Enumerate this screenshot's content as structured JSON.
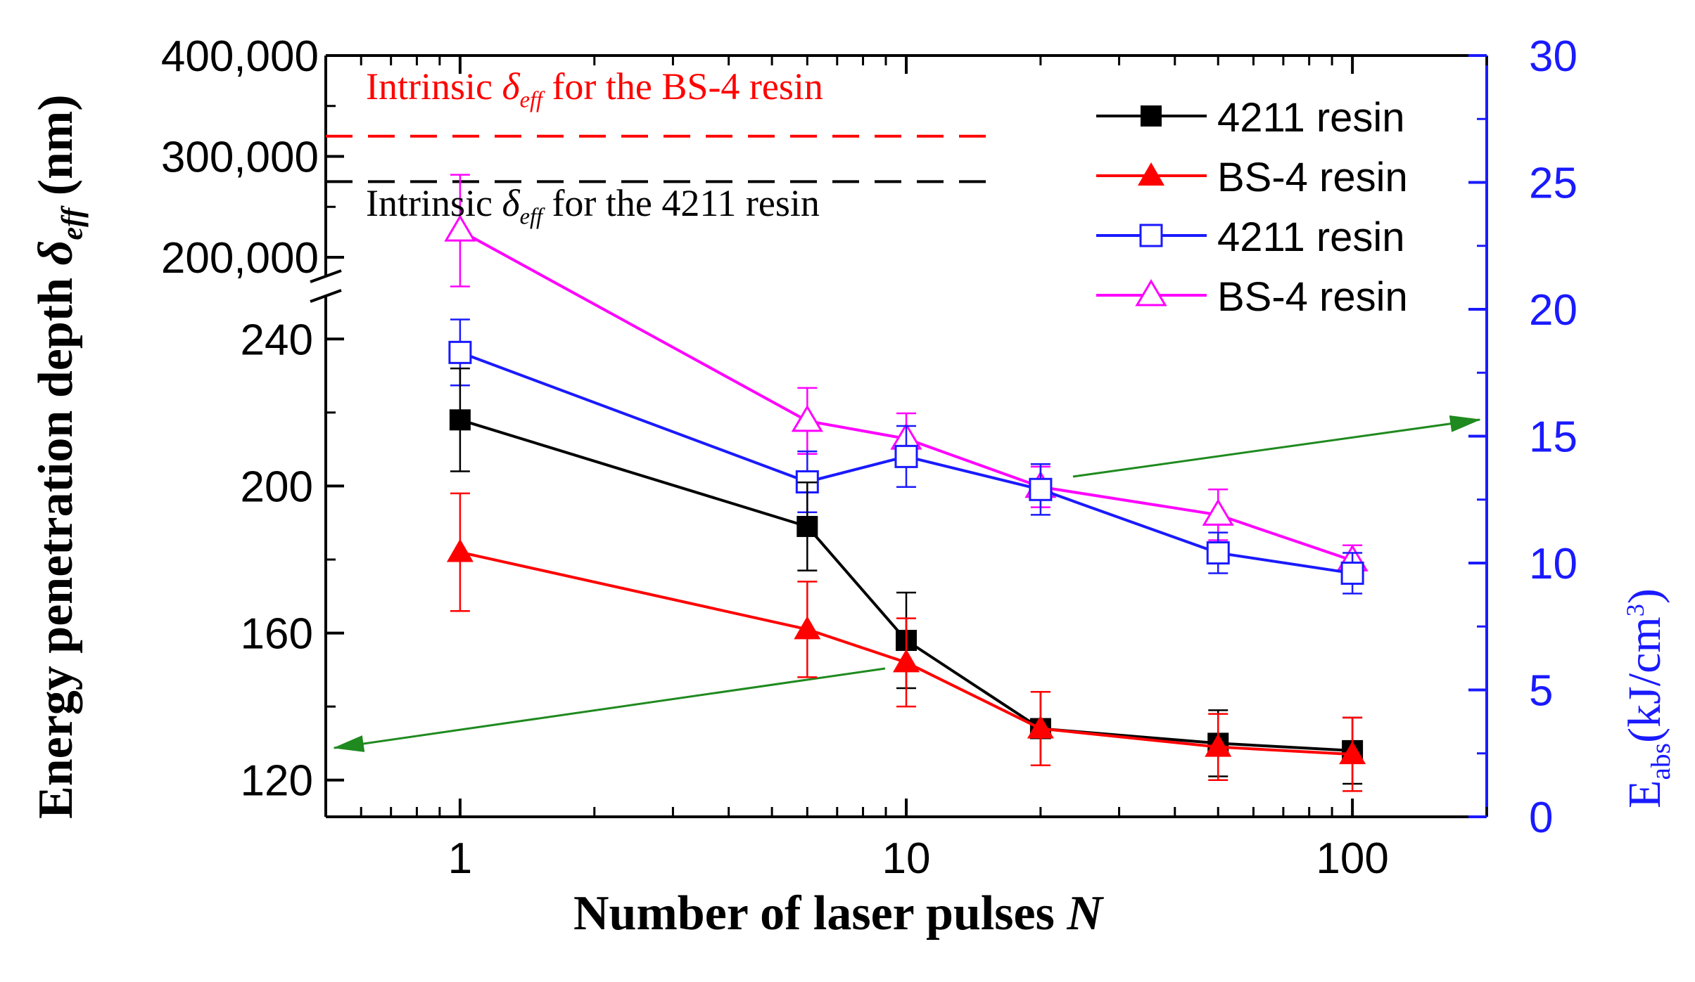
{
  "chart_data": {
    "type": "line",
    "x_scale": "log",
    "xlabel_prefix": "Number of laser pulses",
    "xlabel_var": "N",
    "ylabel_prefix": "Energy penetration depth",
    "ylabel_symbol": "δ",
    "ylabel_sub": "eff",
    "ylabel_unit": "(nm)",
    "y2label_main": "E",
    "y2label_sub": "abs",
    "y2label_unit_pre": "(kJ/cm",
    "y2label_unit_sup": "3",
    "y2label_unit_post": ")",
    "xlim": [
      0.5,
      200
    ],
    "x_ticks": [
      1,
      10,
      100
    ],
    "x_tick_labels": [
      "1",
      "10",
      "100"
    ],
    "ylim_lower": [
      110,
      250
    ],
    "y_ticks_lower": [
      120,
      160,
      200,
      240
    ],
    "y_tick_labels_lower": [
      "120",
      "160",
      "200",
      "240"
    ],
    "y_ticks_upper_labels": [
      "200,000",
      "300,000",
      "400,000"
    ],
    "y2lim": [
      0,
      30
    ],
    "y2_ticks": [
      0,
      5,
      10,
      15,
      20,
      25,
      30
    ],
    "y2_tick_labels": [
      "0",
      "5",
      "10",
      "15",
      "20",
      "25",
      "30"
    ],
    "x": [
      1,
      6,
      10,
      20,
      50,
      100
    ],
    "series": [
      {
        "name": "4211 resin",
        "axis": "left",
        "marker": "square-filled",
        "color": "#000000",
        "values": [
          218,
          189,
          158,
          134,
          130,
          128
        ],
        "errors": [
          14,
          12,
          13,
          10,
          9,
          9
        ]
      },
      {
        "name": "BS-4 resin",
        "axis": "left",
        "marker": "triangle-filled",
        "color": "#ff0000",
        "values": [
          182,
          161,
          152,
          134,
          129,
          127
        ],
        "errors": [
          16,
          13,
          12,
          10,
          9,
          10
        ]
      },
      {
        "name": "4211 resin",
        "axis": "right",
        "marker": "square-open",
        "color": "#1a1aff",
        "values": [
          18.3,
          13.2,
          14.2,
          12.9,
          10.4,
          9.6
        ],
        "errors": [
          1.3,
          1.2,
          1.2,
          1.0,
          0.8,
          0.8
        ]
      },
      {
        "name": "BS-4 resin",
        "axis": "right",
        "marker": "triangle-open",
        "color": "#ff00ff",
        "values": [
          23.1,
          15.6,
          14.9,
          13.0,
          11.9,
          10.1
        ],
        "errors": [
          2.2,
          1.3,
          1.0,
          0.8,
          1.0,
          0.6
        ]
      }
    ],
    "intrinsic_lines": [
      {
        "prefix": "Intrinsic",
        "symbol": "δ",
        "sub": "eff",
        "suffix": "for the BS-4 resin",
        "value": 320000,
        "color": "#ff0000"
      },
      {
        "prefix": "Intrinsic",
        "symbol": "δ",
        "sub": "eff",
        "suffix": "for the 4211 resin",
        "value": 275000,
        "color": "#000000"
      }
    ]
  }
}
